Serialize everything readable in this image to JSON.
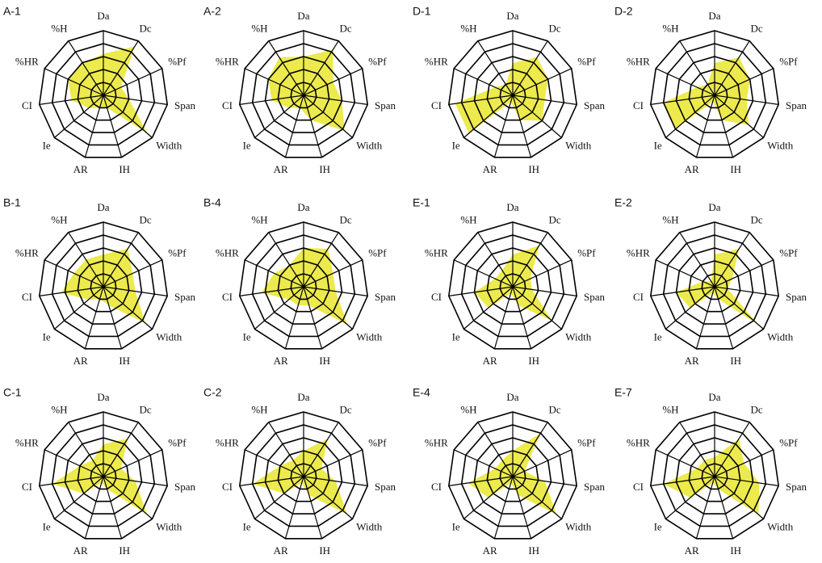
{
  "chart_data": [
    {
      "type": "radar",
      "title": "A-1",
      "categories": [
        "Da",
        "Dc",
        "%Pf",
        "Span",
        "Width",
        "IH",
        "AR",
        "Ie",
        "CI",
        "%HR",
        "%H"
      ],
      "values": [
        3.2,
        4.5,
        1.5,
        2,
        4.5,
        1,
        1,
        1.5,
        2.5,
        3,
        3
      ],
      "color": "#ecea4c",
      "ylim": [
        0,
        5
      ],
      "yticks": [
        1,
        2,
        3,
        4,
        5
      ]
    },
    {
      "type": "radar",
      "title": "A-2",
      "categories": [
        "Da",
        "Dc",
        "%Pf",
        "Span",
        "Width",
        "IH",
        "AR",
        "Ie",
        "CI",
        "%HR",
        "%H"
      ],
      "values": [
        3,
        4.2,
        2.5,
        3,
        4.2,
        2,
        1,
        1.5,
        2.5,
        3,
        3.5
      ],
      "color": "#ecea4c",
      "ylim": [
        0,
        5
      ],
      "yticks": [
        1,
        2,
        3,
        4,
        5
      ]
    },
    {
      "type": "radar",
      "title": "D-1",
      "categories": [
        "Da",
        "Dc",
        "%Pf",
        "Span",
        "Width",
        "IH",
        "AR",
        "Ie",
        "CI",
        "%HR",
        "%H"
      ],
      "values": [
        2.5,
        3.5,
        3,
        2.5,
        3,
        2,
        0.5,
        4.5,
        4.5,
        1.5,
        1
      ],
      "color": "#ecea4c",
      "ylim": [
        0,
        5
      ],
      "yticks": [
        1,
        2,
        3,
        4,
        5
      ]
    },
    {
      "type": "radar",
      "title": "D-2",
      "categories": [
        "Da",
        "Dc",
        "%Pf",
        "Span",
        "Width",
        "IH",
        "AR",
        "Ie",
        "CI",
        "%HR",
        "%H"
      ],
      "values": [
        2.5,
        3.5,
        3,
        2.5,
        3.5,
        2,
        0.5,
        4,
        4,
        1.5,
        1
      ],
      "color": "#ecea4c",
      "ylim": [
        0,
        5
      ],
      "yticks": [
        1,
        2,
        3,
        4,
        5
      ]
    },
    {
      "type": "radar",
      "title": "B-1",
      "categories": [
        "Da",
        "Dc",
        "%Pf",
        "Span",
        "Width",
        "IH",
        "AR",
        "Ie",
        "CI",
        "%HR",
        "%H"
      ],
      "values": [
        2.5,
        3.5,
        2.5,
        2.5,
        4.3,
        1.5,
        1,
        1.5,
        3.3,
        2.5,
        2.5
      ],
      "color": "#ecea4c",
      "ylim": [
        0,
        5
      ],
      "yticks": [
        1,
        2,
        3,
        4,
        5
      ]
    },
    {
      "type": "radar",
      "title": "B-4",
      "categories": [
        "Da",
        "Dc",
        "%Pf",
        "Span",
        "Width",
        "IH",
        "AR",
        "Ie",
        "CI",
        "%HR",
        "%H"
      ],
      "values": [
        3,
        3.5,
        2.5,
        2.5,
        4.5,
        1.5,
        1.5,
        1.5,
        3.3,
        2.5,
        2
      ],
      "color": "#ecea4c",
      "ylim": [
        0,
        5
      ],
      "yticks": [
        1,
        2,
        3,
        4,
        5
      ]
    },
    {
      "type": "radar",
      "title": "E-1",
      "categories": [
        "Da",
        "Dc",
        "%Pf",
        "Span",
        "Width",
        "IH",
        "AR",
        "Ie",
        "CI",
        "%HR",
        "%H"
      ],
      "values": [
        2.5,
        3.8,
        1.5,
        1.5,
        4,
        1.5,
        0.5,
        2.5,
        3,
        1.5,
        1.5
      ],
      "color": "#ecea4c",
      "ylim": [
        0,
        5
      ],
      "yticks": [
        1,
        2,
        3,
        4,
        5
      ]
    },
    {
      "type": "radar",
      "title": "E-2",
      "categories": [
        "Da",
        "Dc",
        "%Pf",
        "Span",
        "Width",
        "IH",
        "AR",
        "Ie",
        "CI",
        "%HR",
        "%H"
      ],
      "values": [
        2.5,
        3.5,
        1.5,
        1,
        4.5,
        1,
        0.5,
        2.5,
        3,
        1,
        0.5
      ],
      "color": "#ecea4c",
      "ylim": [
        0,
        5
      ],
      "yticks": [
        1,
        2,
        3,
        4,
        5
      ]
    },
    {
      "type": "radar",
      "title": "C-1",
      "categories": [
        "Da",
        "Dc",
        "%Pf",
        "Span",
        "Width",
        "IH",
        "AR",
        "Ie",
        "CI",
        "%HR",
        "%H"
      ],
      "values": [
        2.5,
        3.5,
        1.5,
        2.5,
        4.5,
        1,
        0.5,
        2,
        4,
        2,
        1.5
      ],
      "color": "#ecea4c",
      "ylim": [
        0,
        5
      ],
      "yticks": [
        1,
        2,
        3,
        4,
        5
      ]
    },
    {
      "type": "radar",
      "title": "C-2",
      "categories": [
        "Da",
        "Dc",
        "%Pf",
        "Span",
        "Width",
        "IH",
        "AR",
        "Ie",
        "CI",
        "%HR",
        "%H"
      ],
      "values": [
        2,
        3.5,
        1.5,
        2.5,
        4.5,
        1.5,
        0.5,
        2,
        4,
        2,
        1.5
      ],
      "color": "#ecea4c",
      "ylim": [
        0,
        5
      ],
      "yticks": [
        1,
        2,
        3,
        4,
        5
      ]
    },
    {
      "type": "radar",
      "title": "E-4",
      "categories": [
        "Da",
        "Dc",
        "%Pf",
        "Span",
        "Width",
        "IH",
        "AR",
        "Ie",
        "CI",
        "%HR",
        "%H"
      ],
      "values": [
        2,
        4,
        1,
        2.5,
        4.5,
        1.5,
        0.5,
        2.5,
        3.5,
        1.5,
        1.5
      ],
      "color": "#ecea4c",
      "ylim": [
        0,
        5
      ],
      "yticks": [
        1,
        2,
        3,
        4,
        5
      ]
    },
    {
      "type": "radar",
      "title": "E-7",
      "categories": [
        "Da",
        "Dc",
        "%Pf",
        "Span",
        "Width",
        "IH",
        "AR",
        "Ie",
        "CI",
        "%HR",
        "%H"
      ],
      "values": [
        1.5,
        3.5,
        2.5,
        3.5,
        4.5,
        1,
        0.5,
        2.5,
        4,
        1.5,
        1.5
      ],
      "color": "#ecea4c",
      "ylim": [
        0,
        5
      ],
      "yticks": [
        1,
        2,
        3,
        4,
        5
      ]
    }
  ]
}
